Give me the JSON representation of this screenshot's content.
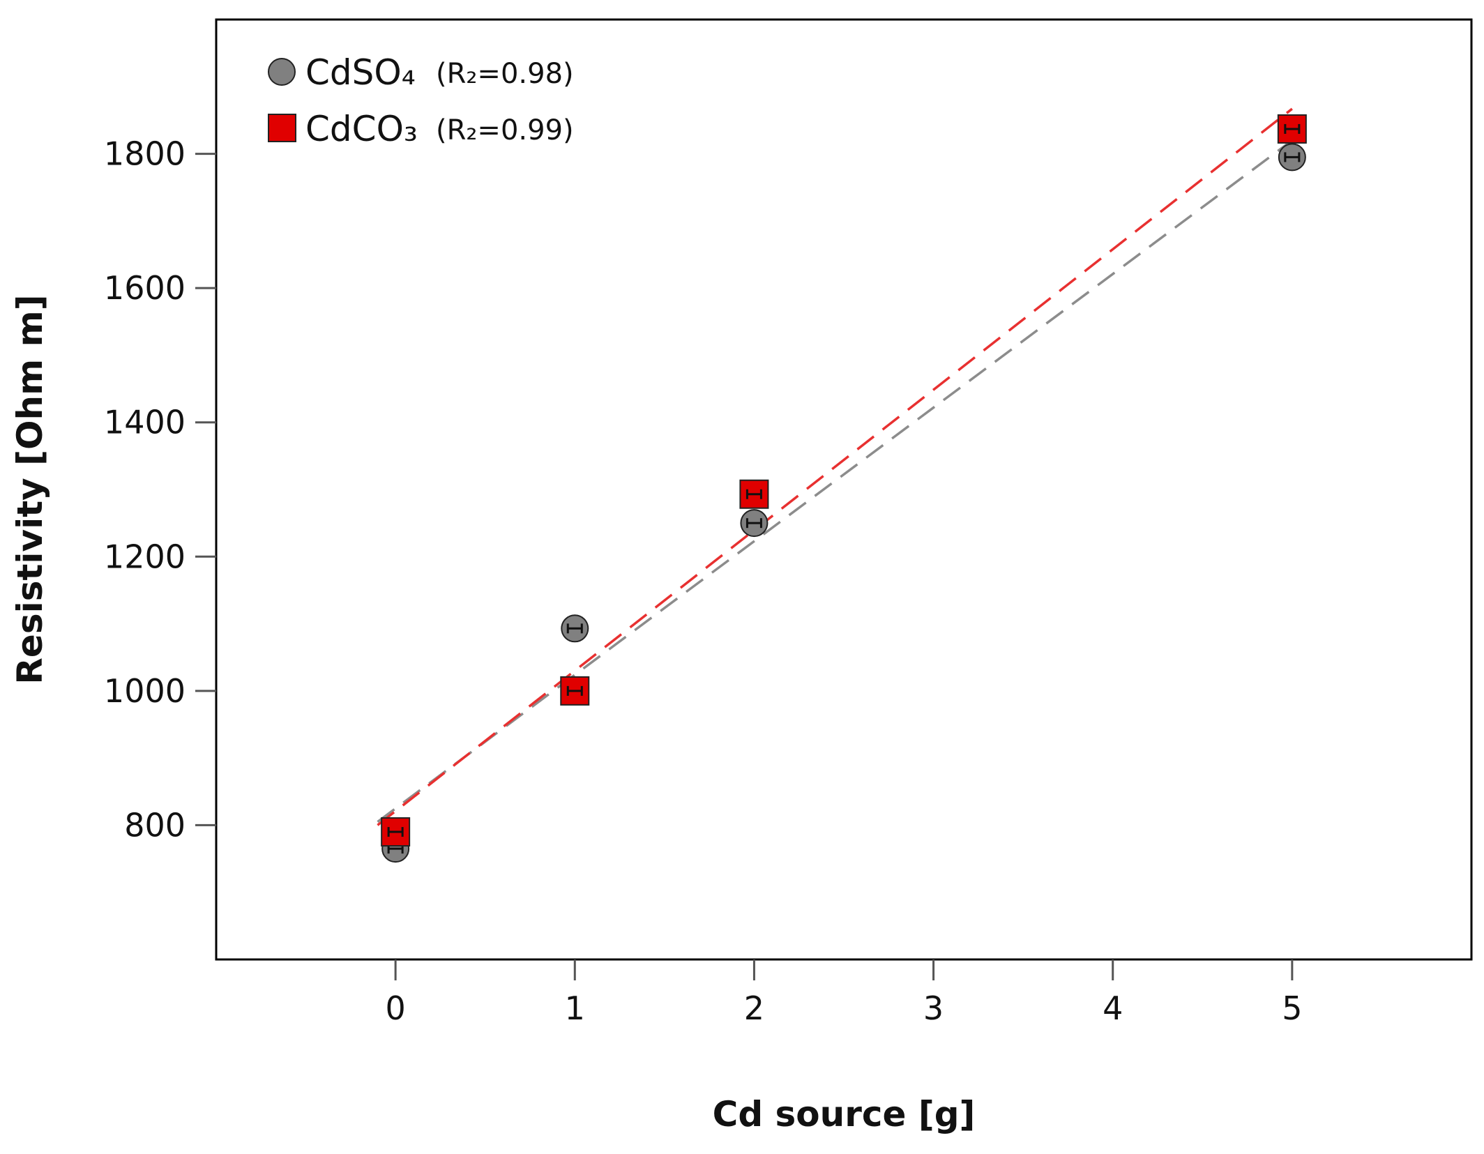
{
  "chart_data": {
    "type": "scatter",
    "title": "",
    "xlabel": "Cd source [g]",
    "ylabel": "Resistivity [Ohm m]",
    "xlim": [
      -1,
      6
    ],
    "ylim": [
      600,
      2000
    ],
    "xticks": [
      0,
      1,
      2,
      3,
      4,
      5
    ],
    "xtick_labels": [
      "0",
      "1",
      "2",
      "3",
      "4",
      "5"
    ],
    "yticks": [
      800,
      1000,
      1200,
      1400,
      1600,
      1800
    ],
    "ytick_labels": [
      "800",
      "1000",
      "1200",
      "1400",
      "1600",
      "1800"
    ],
    "grid": false,
    "legend_position": "top-left",
    "series": [
      {
        "name": "CdSO4",
        "legend_label": "CdSO₄",
        "r2_label": "(R₂=0.98)",
        "marker": "circle",
        "color": "#808080",
        "x": [
          0,
          1,
          2,
          5
        ],
        "y": [
          765,
          1093,
          1250,
          1795
        ],
        "fit_line": {
          "x": [
            -0.1,
            5
          ],
          "y": [
            805,
            1820
          ],
          "color": "#8c8c8c"
        }
      },
      {
        "name": "CdCO3",
        "legend_label": "CdCO₃",
        "r2_label": "(R₂=0.99)",
        "marker": "square",
        "color": "#e00000",
        "x": [
          0,
          1,
          2,
          5
        ],
        "y": [
          790,
          1000,
          1293,
          1837
        ],
        "fit_line": {
          "x": [
            -0.1,
            5
          ],
          "y": [
            800,
            1867
          ],
          "color": "#e83030"
        }
      }
    ]
  }
}
